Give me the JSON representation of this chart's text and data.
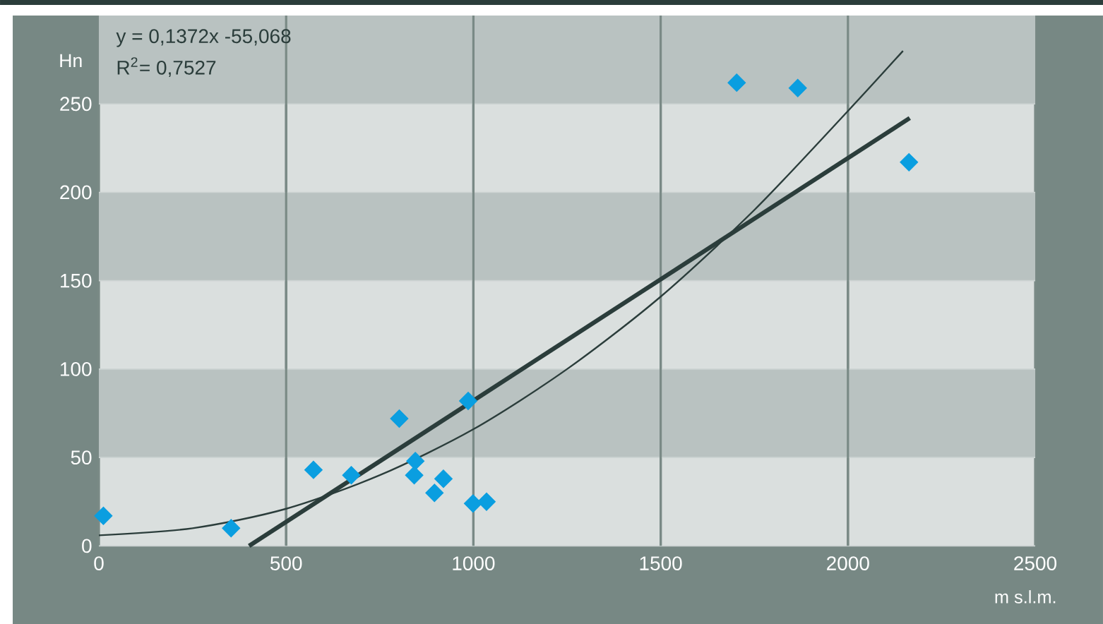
{
  "chart_data": {
    "type": "scatter",
    "xlabel": "m s.l.m.",
    "ylabel": "Hn",
    "annotations": [
      "y = 0,1372x -55,068",
      "R$^{2}$= 0,7527"
    ],
    "xlim": [
      0,
      2500
    ],
    "ylim": [
      0,
      300
    ],
    "xticks": [
      0,
      500,
      1000,
      1500,
      2000,
      2500
    ],
    "yticks": [
      0,
      50,
      100,
      150,
      200,
      250
    ],
    "grid": true,
    "series": [
      {
        "marker": "diamond",
        "color": "#0a9ee0",
        "x": [
          12,
          353,
          573,
          674,
          802,
          845,
          842,
          896,
          920,
          986,
          999,
          1035,
          1703,
          1866,
          2163
        ],
        "values": [
          17,
          10,
          43,
          40,
          72,
          48,
          40,
          30,
          38,
          82,
          24,
          25,
          262,
          259,
          217
        ]
      },
      {
        "type": "line",
        "line_style": "solid",
        "color": "#2b3d3b",
        "x": [
          401,
          2165
        ],
        "values": [
          0,
          242
        ]
      },
      {
        "type": "line",
        "line_style": "solid",
        "color": "#2b3d3b",
        "x": [
          0,
          250,
          500,
          750,
          1000,
          1250,
          1500,
          1750,
          2000,
          2147
        ],
        "values": [
          6,
          10,
          21,
          40,
          66,
          100,
          141,
          190,
          246,
          280
        ]
      }
    ]
  }
}
